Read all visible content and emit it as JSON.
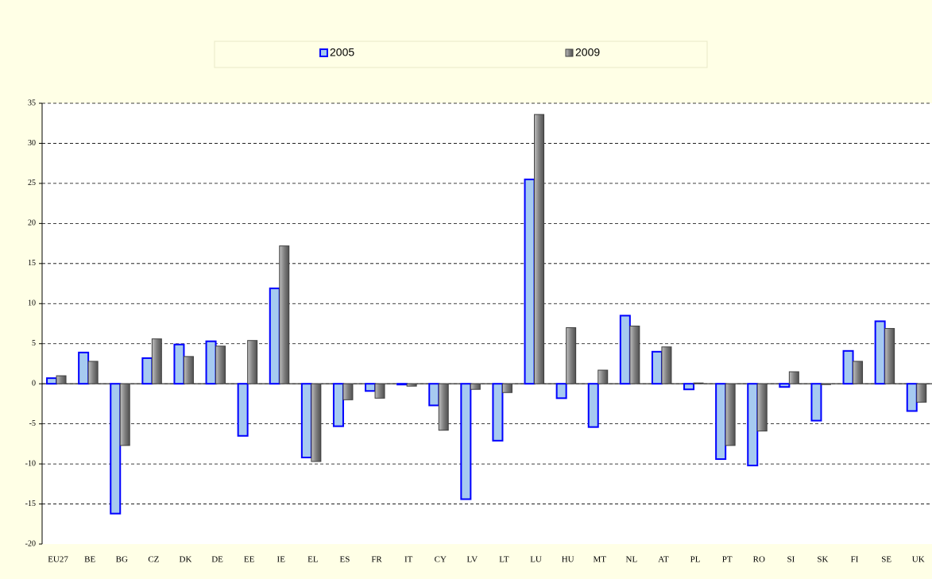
{
  "chart_data": {
    "type": "bar",
    "categories": [
      "EU27",
      "BE",
      "BG",
      "CZ",
      "DK",
      "DE",
      "EE",
      "IE",
      "EL",
      "ES",
      "FR",
      "IT",
      "CY",
      "LV",
      "LT",
      "LU",
      "HU",
      "MT",
      "NL",
      "AT",
      "PL",
      "PT",
      "RO",
      "SI",
      "SK",
      "FI",
      "SE",
      "UK"
    ],
    "series": [
      {
        "name": "2005",
        "color": "#a6caf0",
        "values": [
          0.7,
          3.9,
          -16.2,
          3.2,
          4.9,
          5.3,
          -6.5,
          11.9,
          -9.2,
          -5.3,
          -0.9,
          -0.1,
          -2.7,
          -14.4,
          -7.1,
          25.5,
          -1.8,
          -5.4,
          8.5,
          4.0,
          -0.7,
          -9.4,
          -10.2,
          -0.4,
          -4.6,
          4.1,
          7.8,
          -3.4
        ]
      },
      {
        "name": "2009",
        "color": "#8c8c8c",
        "values": [
          1.0,
          2.8,
          -7.7,
          5.6,
          3.4,
          4.7,
          5.4,
          17.2,
          -9.7,
          -2.0,
          -1.8,
          -0.3,
          -5.8,
          -0.7,
          -1.1,
          33.6,
          7.0,
          1.7,
          7.2,
          4.6,
          0.1,
          -7.7,
          -5.9,
          1.5,
          -0.1,
          2.8,
          6.9,
          -2.3
        ]
      }
    ],
    "ylim": [
      -20,
      35
    ],
    "yticks": [
      -20,
      -15,
      -10,
      -5,
      0,
      5,
      10,
      15,
      20,
      25,
      30,
      35
    ],
    "grid": true,
    "legend": "top"
  }
}
